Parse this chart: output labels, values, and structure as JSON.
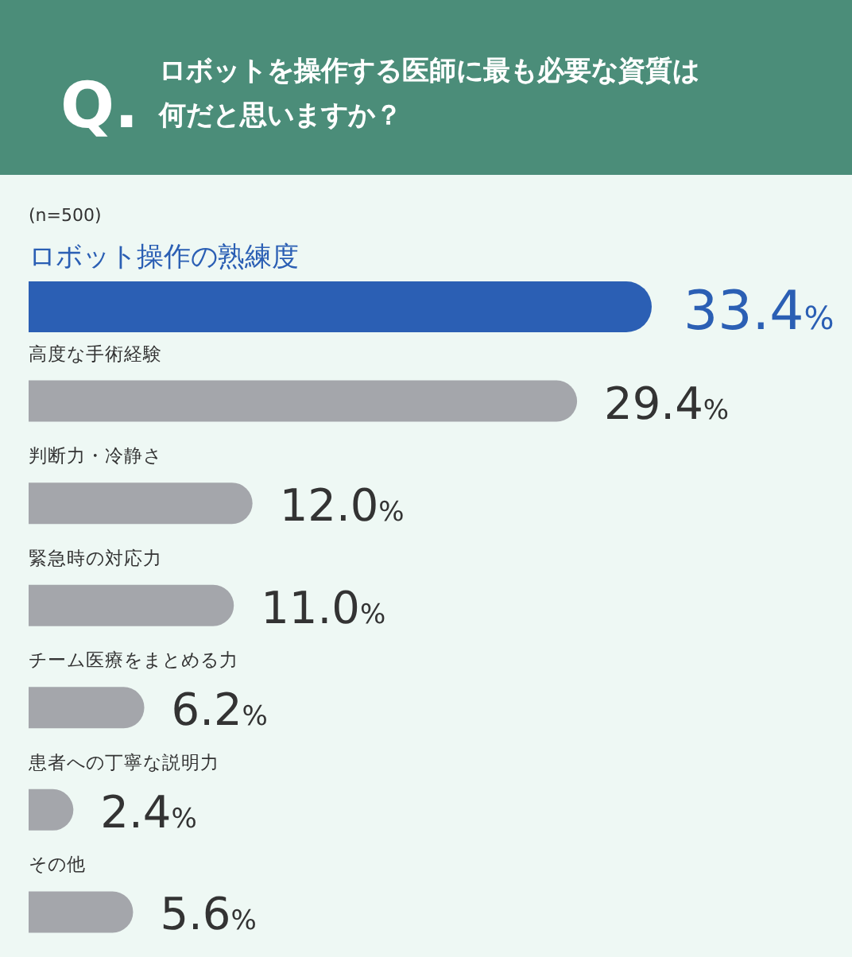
{
  "chart_data": {
    "type": "bar",
    "orientation": "horizontal",
    "title": "ロボットを操作する医師に最も必要な資質は何だと思いますか？",
    "subtitle": "(n=500)",
    "annotations": [
      "Q."
    ],
    "categories": [
      "ロボット操作の熟練度",
      "高度な手術経験",
      "判断力・冷静さ",
      "緊急時の対応力",
      "チーム医療をまとめる力",
      "患者への丁寧な説明力",
      "その他"
    ],
    "values": [
      33.4,
      29.4,
      12.0,
      11.0,
      6.2,
      2.4,
      5.6
    ],
    "colors": [
      "#2b5fb4",
      "#a4a6ab",
      "#a4a6ab",
      "#a4a6ab",
      "#a4a6ab",
      "#a4a6ab",
      "#a4a6ab"
    ],
    "value_labels": [
      "33.4%",
      "29.4%",
      "12.0%",
      "11.0%",
      "6.2%",
      "2.4%",
      "5.6%"
    ]
  }
}
